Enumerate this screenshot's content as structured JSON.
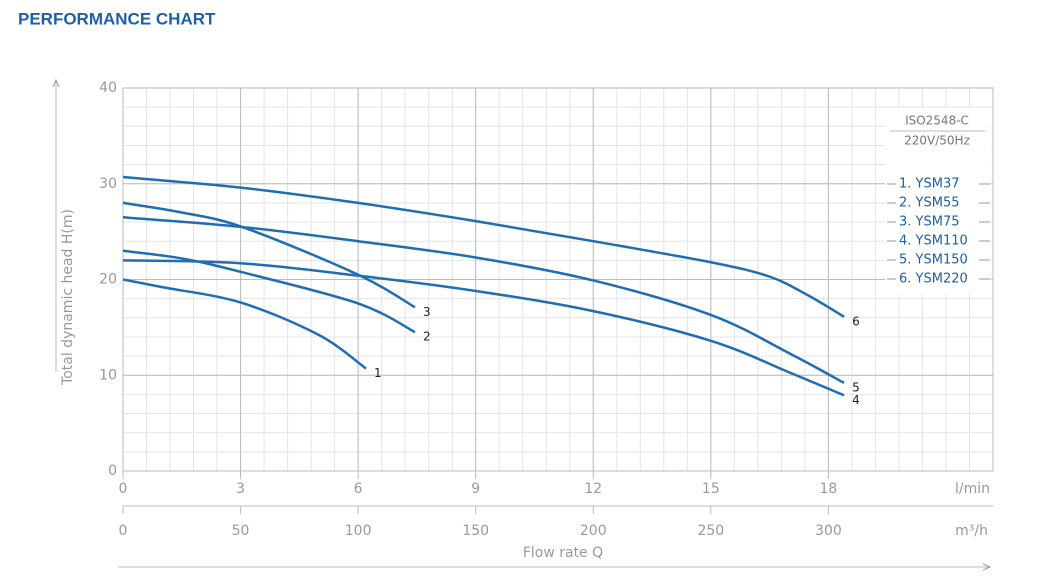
{
  "chart_data": {
    "type": "line",
    "title": "PERFORMANCE CHART",
    "y_label": "Total dynamic head H(m)",
    "x_label": "Flow rate Q",
    "x_unit": "l/min",
    "x2_unit": "m³/h",
    "annotations": [
      "ISO2548-C",
      "220V/50Hz"
    ],
    "xlim": [
      0,
      22.2
    ],
    "xticks": [
      0,
      3,
      6,
      9,
      12,
      15,
      18
    ],
    "x2lim": [
      0,
      370
    ],
    "x2ticks": [
      0,
      50,
      100,
      150,
      200,
      250,
      300
    ],
    "ylim": [
      0,
      40
    ],
    "yticks": [
      0,
      10,
      20,
      30,
      40
    ],
    "grid": true,
    "minor_grid": true,
    "series": [
      {
        "name": "1. YSM37",
        "label": "1",
        "color": "#1f6db3",
        "x": [
          0,
          1,
          3,
          5,
          6.2
        ],
        "values": [
          20,
          19.2,
          17.6,
          14.2,
          10.7
        ]
      },
      {
        "name": "2. YSM55",
        "label": "2",
        "color": "#1f6db3",
        "x": [
          0,
          1.5,
          3,
          6,
          7.45
        ],
        "values": [
          23,
          22.2,
          20.8,
          17.5,
          14.5
        ]
      },
      {
        "name": "3. YSM75",
        "label": "3",
        "color": "#1f6db3",
        "x": [
          0,
          1.5,
          3.1,
          6,
          7.45
        ],
        "values": [
          28,
          27,
          25.4,
          20.5,
          17.1
        ]
      },
      {
        "name": "4. YSM110",
        "label": "4",
        "color": "#1f6db3",
        "x": [
          0,
          3,
          6,
          9,
          12,
          15,
          17,
          18.4
        ],
        "values": [
          22,
          21.7,
          20.4,
          18.8,
          16.7,
          13.6,
          10.3,
          7.9
        ]
      },
      {
        "name": "5. YSM150",
        "label": "5",
        "color": "#1f6db3",
        "x": [
          0,
          3,
          6,
          9,
          12,
          15,
          17,
          18.4
        ],
        "values": [
          26.5,
          25.5,
          24,
          22.3,
          19.9,
          16.3,
          12.3,
          9.2
        ]
      },
      {
        "name": "6. YSM220",
        "label": "6",
        "color": "#1f6db3",
        "x": [
          0,
          3,
          6,
          9,
          12,
          15,
          16.5,
          17.5,
          18.4
        ],
        "values": [
          30.7,
          29.6,
          28,
          26.1,
          24,
          21.8,
          20.3,
          18.3,
          16.1
        ]
      }
    ]
  }
}
